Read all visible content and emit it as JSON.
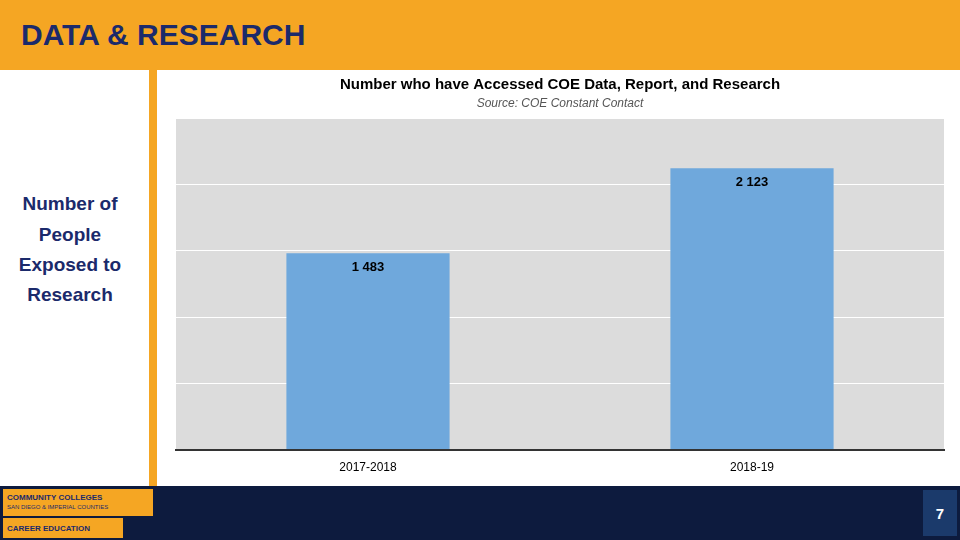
{
  "chart_data": {
    "type": "bar",
    "title": "Number who have Accessed COE Data, Report, and Research",
    "subtitle": "Source: COE Constant Contact",
    "categories": [
      "2017-2018",
      "2018-19"
    ],
    "values": [
      1483,
      2123
    ],
    "value_labels": [
      "1 483",
      "2 123"
    ],
    "color": "#6FA8DC",
    "ylim": [
      0,
      2500
    ],
    "yticks": [
      0,
      500,
      1000,
      1500,
      2000,
      2500
    ],
    "grid": true,
    "data_labels": true,
    "tick_labels": "x",
    "annotations": [
      "DATA & RESEARCH",
      "Number of\nPeople\nExposed to\nResearch",
      "COMMUNITY COLLEGES",
      "SAN DIEGO & IMPERIAL COUNTIES",
      "CAREER EDUCATION",
      "7"
    ]
  }
}
